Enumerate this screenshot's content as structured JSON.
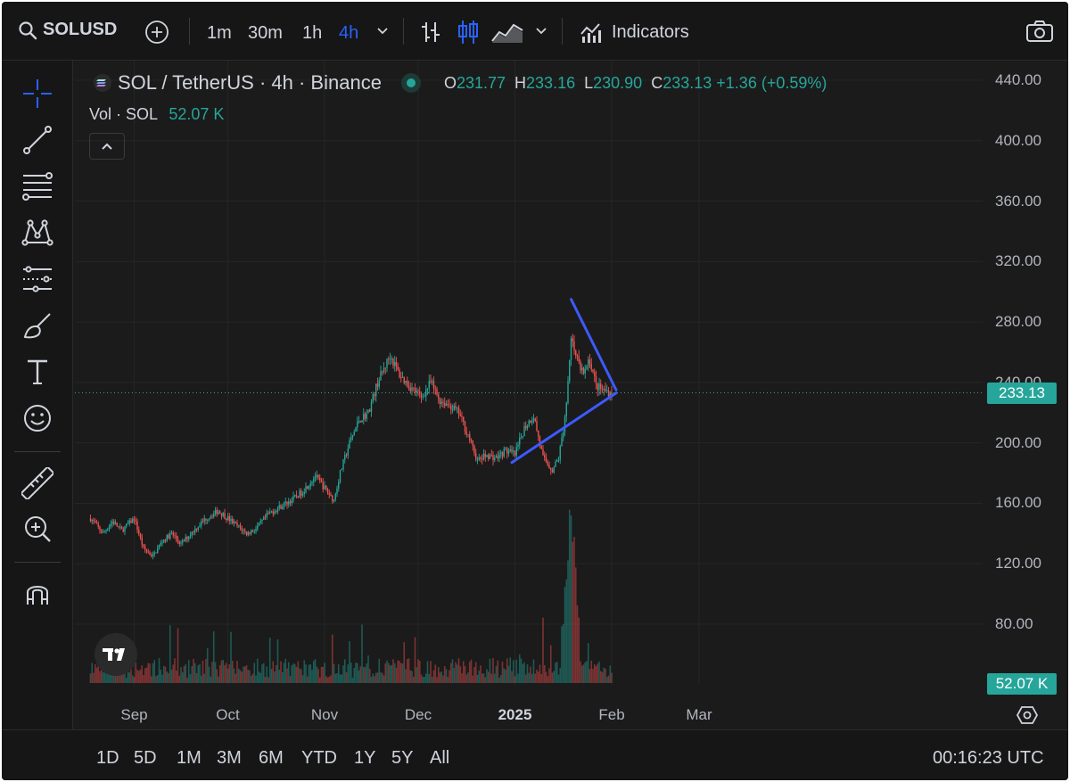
{
  "toolbar": {
    "symbol": "SOLUSD",
    "intervals": [
      "1m",
      "30m",
      "1h",
      "4h"
    ],
    "active_interval": "4h",
    "indicators_label": "Indicators",
    "icons": [
      "search-icon",
      "add-symbol-icon",
      "chevron-down-icon",
      "bar-chart-icon",
      "candles-icon",
      "area-chart-icon",
      "indicators-icon",
      "camera-icon"
    ]
  },
  "left_tools": [
    "crosshair-icon",
    "trend-line-icon",
    "fib-icon",
    "pattern-icon",
    "prediction-icon",
    "brush-icon",
    "text-icon",
    "emoji-icon",
    "ruler-icon",
    "zoom-icon",
    "magnet-icon"
  ],
  "legend": {
    "title": "SOL / TetherUS · 4h · Binance",
    "o_label": "O",
    "o": "231.77",
    "h_label": "H",
    "h": "233.16",
    "l_label": "L",
    "l": "230.90",
    "c_label": "C",
    "c": "233.13",
    "change": "+1.36 (+0.59%)",
    "vol_label": "Vol · SOL",
    "vol": "52.07 K"
  },
  "price_axis": {
    "ticks": [
      "440.00",
      "400.00",
      "360.00",
      "320.00",
      "280.00",
      "240.00",
      "200.00",
      "160.00",
      "120.00",
      "80.00"
    ],
    "current_price": "233.13",
    "current_volume": "52.07 K"
  },
  "time_axis": {
    "ticks": [
      "Sep",
      "Oct",
      "Nov",
      "Dec",
      "2025",
      "Feb",
      "Mar"
    ]
  },
  "bottom_bar": {
    "ranges": [
      "1D",
      "5D",
      "1M",
      "3M",
      "6M",
      "YTD",
      "1Y",
      "5Y",
      "All"
    ],
    "clock": "00:16:23 UTC"
  },
  "colors": {
    "up": "#26a69a",
    "down": "#ef5350",
    "accent": "#2962ff",
    "drawing": "#3d5afe"
  },
  "chart_data": {
    "type": "candlestick",
    "title": "SOL / TetherUS · 4h · Binance",
    "ylim": [
      100,
      440
    ],
    "x_ticks": [
      "Sep",
      "Oct",
      "Nov",
      "Dec",
      "2025",
      "Feb",
      "Mar"
    ],
    "price_path": [
      [
        "Aug 18",
        150
      ],
      [
        "Aug 22",
        140
      ],
      [
        "Aug 25",
        148
      ],
      [
        "Aug 28",
        142
      ],
      [
        "Sep 1",
        150
      ],
      [
        "Sep 4",
        130
      ],
      [
        "Sep 7",
        125
      ],
      [
        "Sep 10",
        135
      ],
      [
        "Sep 13",
        140
      ],
      [
        "Sep 16",
        133
      ],
      [
        "Sep 20",
        142
      ],
      [
        "Sep 24",
        150
      ],
      [
        "Sep 28",
        155
      ],
      [
        "Oct 1",
        150
      ],
      [
        "Oct 4",
        145
      ],
      [
        "Oct 7",
        140
      ],
      [
        "Oct 10",
        143
      ],
      [
        "Oct 14",
        153
      ],
      [
        "Oct 18",
        158
      ],
      [
        "Oct 22",
        163
      ],
      [
        "Oct 25",
        168
      ],
      [
        "Oct 29",
        178
      ],
      [
        "Nov 1",
        170
      ],
      [
        "Nov 4",
        162
      ],
      [
        "Nov 6",
        180
      ],
      [
        "Nov 9",
        200
      ],
      [
        "Nov 12",
        215
      ],
      [
        "Nov 15",
        220
      ],
      [
        "Nov 18",
        240
      ],
      [
        "Nov 22",
        258
      ],
      [
        "Nov 25",
        245
      ],
      [
        "Nov 28",
        238
      ],
      [
        "Dec 2",
        230
      ],
      [
        "Dec 5",
        240
      ],
      [
        "Dec 8",
        228
      ],
      [
        "Dec 11",
        225
      ],
      [
        "Dec 14",
        220
      ],
      [
        "Dec 17",
        205
      ],
      [
        "Dec 20",
        188
      ],
      [
        "Dec 23",
        192
      ],
      [
        "Dec 26",
        190
      ],
      [
        "Dec 29",
        195
      ],
      [
        "Jan 1",
        192
      ],
      [
        "Jan 4",
        210
      ],
      [
        "Jan 7",
        218
      ],
      [
        "Jan 10",
        190
      ],
      [
        "Jan 13",
        182
      ],
      [
        "Jan 15",
        190
      ],
      [
        "Jan 17",
        215
      ],
      [
        "Jan 19",
        270
      ],
      [
        "Jan 21",
        255
      ],
      [
        "Jan 23",
        245
      ],
      [
        "Jan 25",
        255
      ],
      [
        "Jan 27",
        238
      ],
      [
        "Jan 29",
        235
      ],
      [
        "Feb 1",
        233.13
      ]
    ],
    "volume_peak_date": "Jan 19",
    "triangle_drawing": {
      "upper_line": [
        [
          "Jan 19",
          295
        ],
        [
          "Feb 1",
          235
        ]
      ],
      "lower_line": [
        [
          "Dec 31",
          187
        ],
        [
          "Feb 1",
          233
        ]
      ]
    },
    "last_close": 233.13,
    "last_volume_k": 52.07
  }
}
